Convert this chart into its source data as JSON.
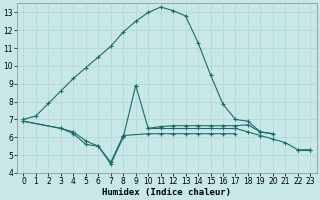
{
  "xlabel": "Humidex (Indice chaleur)",
  "bg_color": "#c8e8e8",
  "grid_color": "#b0d4d4",
  "line_color": "#1a6b6b",
  "xlim": [
    -0.5,
    23.5
  ],
  "ylim": [
    4,
    13.5
  ],
  "yticks": [
    4,
    5,
    6,
    7,
    8,
    9,
    10,
    11,
    12,
    13
  ],
  "xticks": [
    0,
    1,
    2,
    3,
    4,
    5,
    6,
    7,
    8,
    9,
    10,
    11,
    12,
    13,
    14,
    15,
    16,
    17,
    18,
    19,
    20,
    21,
    22,
    23
  ],
  "lines": [
    {
      "x": [
        0,
        1,
        2,
        3,
        4,
        5,
        6,
        7,
        8,
        9,
        10,
        11,
        12,
        13,
        14,
        15,
        16,
        17,
        18,
        19,
        20
      ],
      "y": [
        7.0,
        7.2,
        7.9,
        8.6,
        9.3,
        9.9,
        10.5,
        11.1,
        11.9,
        12.5,
        13.0,
        13.3,
        13.1,
        12.8,
        11.3,
        9.5,
        7.85,
        7.0,
        6.9,
        6.3,
        6.2
      ]
    },
    {
      "x": [
        0,
        3,
        4,
        5,
        6,
        7,
        8,
        9
      ],
      "y": [
        6.9,
        6.5,
        6.3,
        5.8,
        5.5,
        4.5,
        6.0,
        8.9
      ]
    },
    {
      "x": [
        9,
        10,
        11,
        12,
        13,
        14,
        15,
        16,
        17,
        18,
        19,
        20
      ],
      "y": [
        8.9,
        6.5,
        6.6,
        6.65,
        6.65,
        6.65,
        6.65,
        6.65,
        6.65,
        6.7,
        6.3,
        6.2
      ]
    },
    {
      "x": [
        0,
        3,
        4,
        5,
        6,
        7,
        8
      ],
      "y": [
        6.9,
        6.5,
        6.2,
        5.6,
        5.5,
        4.6,
        6.1
      ]
    },
    {
      "x": [
        8,
        10,
        11,
        12,
        13,
        14,
        15,
        16,
        17
      ],
      "y": [
        6.1,
        6.2,
        6.2,
        6.2,
        6.2,
        6.2,
        6.2,
        6.2,
        6.2
      ]
    },
    {
      "x": [
        22,
        23
      ],
      "y": [
        5.3,
        5.3
      ]
    },
    {
      "x": [
        10,
        11,
        12,
        13,
        14,
        15,
        16,
        17
      ],
      "y": [
        6.5,
        6.5,
        6.5,
        6.5,
        6.5,
        6.5,
        6.5,
        6.5
      ]
    },
    {
      "x": [
        17,
        18,
        19,
        20,
        21,
        22,
        23
      ],
      "y": [
        6.5,
        6.3,
        6.1,
        5.9,
        5.7,
        5.3,
        5.3
      ]
    }
  ]
}
